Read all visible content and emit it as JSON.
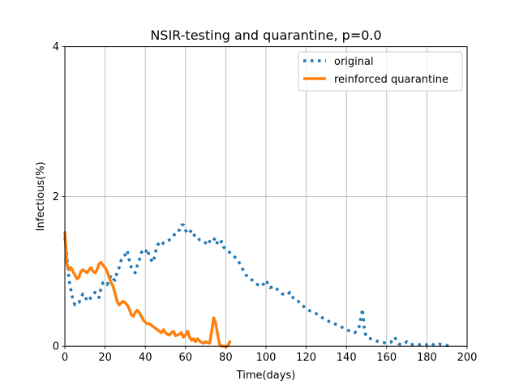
{
  "chart_data": {
    "type": "line",
    "title": "NSIR-testing and quarantine, p=0.0",
    "xlabel": "Time(days)",
    "ylabel": "Infectious(%)",
    "xlim": [
      0,
      200
    ],
    "ylim": [
      0,
      4
    ],
    "xticks": [
      "0",
      "20",
      "40",
      "60",
      "80",
      "100",
      "120",
      "140",
      "160",
      "180",
      "200"
    ],
    "yticks": [
      "0",
      "2",
      "4"
    ],
    "grid": "vertical major grid lines plus a horizontal line at y=2",
    "legend_position": "top-right",
    "series": [
      {
        "name": "original",
        "color": "#1f77b4",
        "style": "dotted",
        "x": [
          0,
          1,
          2,
          3,
          4,
          5,
          6,
          7,
          8,
          9,
          10,
          11,
          12,
          13,
          14,
          15,
          16,
          17,
          18,
          19,
          20,
          21,
          22,
          23,
          24,
          25,
          26,
          27,
          28,
          29,
          30,
          31,
          32,
          33,
          34,
          35,
          36,
          37,
          38,
          39,
          40,
          41,
          42,
          43,
          44,
          45,
          46,
          47,
          48,
          49,
          50,
          51,
          52,
          53,
          54,
          55,
          56,
          57,
          58,
          59,
          60,
          61,
          62,
          63,
          64,
          65,
          66,
          67,
          68,
          69,
          70,
          71,
          72,
          73,
          74,
          75,
          76,
          77,
          78,
          79,
          80,
          81,
          82,
          83,
          84,
          85,
          86,
          87,
          88,
          89,
          90,
          92,
          94,
          96,
          98,
          100,
          102,
          104,
          106,
          108,
          110,
          112,
          114,
          116,
          118,
          120,
          122,
          124,
          126,
          128,
          130,
          132,
          134,
          136,
          138,
          140,
          142,
          144,
          146,
          147,
          148,
          149,
          150,
          152,
          154,
          156,
          158,
          160,
          162,
          164,
          166,
          168,
          170,
          172,
          174,
          176,
          178,
          180,
          182,
          184,
          186,
          188,
          190,
          192
        ],
        "y": [
          1.45,
          1.2,
          0.9,
          0.75,
          0.62,
          0.55,
          0.57,
          0.58,
          0.65,
          0.7,
          0.68,
          0.6,
          0.62,
          0.65,
          0.67,
          0.72,
          0.7,
          0.65,
          0.78,
          0.85,
          0.85,
          0.82,
          0.88,
          0.95,
          0.9,
          0.88,
          1.0,
          1.05,
          1.15,
          1.2,
          1.22,
          1.28,
          1.15,
          1.05,
          1.0,
          0.98,
          1.08,
          1.15,
          1.25,
          1.28,
          1.25,
          1.3,
          1.2,
          1.15,
          1.12,
          1.25,
          1.35,
          1.38,
          1.35,
          1.38,
          1.38,
          1.4,
          1.42,
          1.45,
          1.48,
          1.5,
          1.55,
          1.55,
          1.62,
          1.62,
          1.55,
          1.5,
          1.52,
          1.55,
          1.5,
          1.45,
          1.45,
          1.42,
          1.42,
          1.4,
          1.38,
          1.35,
          1.4,
          1.38,
          1.42,
          1.45,
          1.35,
          1.38,
          1.4,
          1.32,
          1.3,
          1.28,
          1.25,
          1.22,
          1.2,
          1.18,
          1.15,
          1.1,
          1.05,
          1.0,
          0.95,
          0.92,
          0.85,
          0.82,
          0.8,
          0.88,
          0.78,
          0.8,
          0.75,
          0.7,
          0.68,
          0.72,
          0.62,
          0.6,
          0.55,
          0.5,
          0.47,
          0.45,
          0.42,
          0.38,
          0.35,
          0.32,
          0.3,
          0.28,
          0.25,
          0.22,
          0.2,
          0.18,
          0.22,
          0.35,
          0.5,
          0.2,
          0.12,
          0.1,
          0.08,
          0.06,
          0.05,
          0.04,
          0.05,
          0.12,
          0.03,
          0.02,
          0.06,
          0.02,
          0.03,
          0.02,
          0.03,
          0.02,
          0.04,
          0.01,
          0.03,
          0.02,
          0.01,
          0.0
        ]
      },
      {
        "name": "reinforced quarantine",
        "color": "#ff7f0e",
        "style": "solid",
        "x": [
          0,
          1,
          2,
          3,
          4,
          5,
          6,
          7,
          8,
          9,
          10,
          11,
          12,
          13,
          14,
          15,
          16,
          17,
          18,
          19,
          20,
          21,
          22,
          23,
          24,
          25,
          26,
          27,
          28,
          29,
          30,
          31,
          32,
          33,
          34,
          35,
          36,
          37,
          38,
          39,
          40,
          41,
          42,
          43,
          44,
          45,
          46,
          47,
          48,
          49,
          50,
          51,
          52,
          53,
          54,
          55,
          56,
          57,
          58,
          59,
          60,
          61,
          62,
          63,
          64,
          65,
          66,
          67,
          68,
          69,
          70,
          71,
          72,
          73,
          74,
          75,
          76,
          77,
          78,
          79,
          80,
          81,
          82
        ],
        "y": [
          1.52,
          1.1,
          1.02,
          1.05,
          1.0,
          0.95,
          0.9,
          0.92,
          1.0,
          1.02,
          1.0,
          0.98,
          1.02,
          1.05,
          1.0,
          0.98,
          1.02,
          1.1,
          1.12,
          1.08,
          1.05,
          1.0,
          0.92,
          0.85,
          0.8,
          0.7,
          0.6,
          0.55,
          0.58,
          0.6,
          0.58,
          0.55,
          0.5,
          0.42,
          0.4,
          0.45,
          0.48,
          0.45,
          0.4,
          0.35,
          0.32,
          0.3,
          0.3,
          0.28,
          0.26,
          0.24,
          0.22,
          0.2,
          0.18,
          0.22,
          0.18,
          0.16,
          0.15,
          0.18,
          0.2,
          0.14,
          0.15,
          0.16,
          0.18,
          0.12,
          0.15,
          0.2,
          0.12,
          0.08,
          0.1,
          0.06,
          0.1,
          0.07,
          0.05,
          0.04,
          0.06,
          0.05,
          0.04,
          0.2,
          0.38,
          0.3,
          0.15,
          0.02,
          0.0,
          0.0,
          0.0,
          0.0,
          0.06
        ]
      }
    ]
  }
}
